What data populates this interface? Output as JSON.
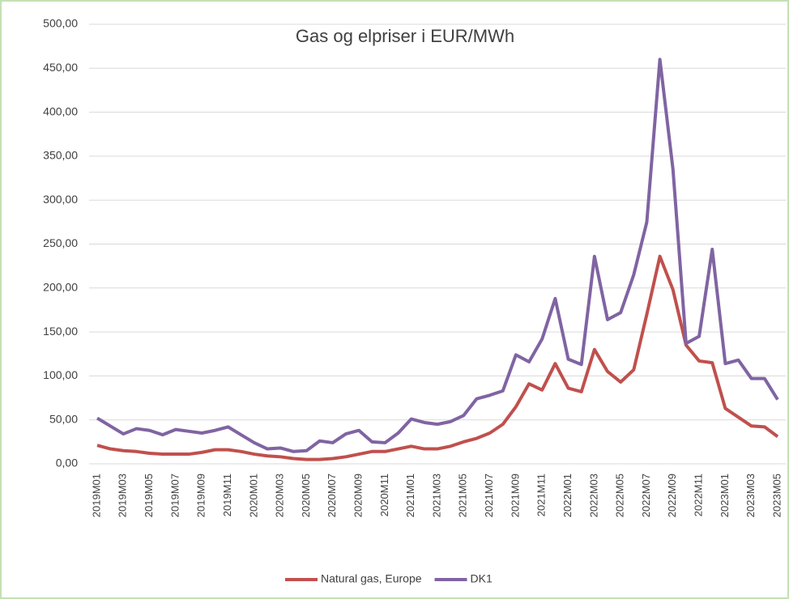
{
  "chart_data": {
    "type": "line",
    "title": "Gas og elpriser i EUR/MWh",
    "categories": [
      "2019M01",
      null,
      "2019M03",
      null,
      "2019M05",
      null,
      "2019M07",
      null,
      "2019M09",
      null,
      "2019M11",
      null,
      "2020M01",
      null,
      "2020M03",
      null,
      "2020M05",
      null,
      "2020M07",
      null,
      "2020M09",
      null,
      "2020M11",
      null,
      "2021M01",
      null,
      "2021M03",
      null,
      "2021M05",
      null,
      "2021M07",
      null,
      "2021M09",
      null,
      "2021M11",
      null,
      "2022M01",
      null,
      "2022M03",
      null,
      "2022M05",
      null,
      "2022M07",
      null,
      "2022M09",
      null,
      "2022M11",
      null,
      "2023M01",
      null,
      "2023M03",
      null,
      "2023M05"
    ],
    "series": [
      {
        "name": "Natural gas, Europe",
        "color": "#c0504d",
        "values": [
          21,
          17,
          15,
          14,
          12,
          11,
          11,
          11,
          13,
          16,
          16,
          14,
          11,
          9,
          8,
          6,
          5,
          5,
          6,
          8,
          11,
          14,
          14,
          17,
          20,
          17,
          17,
          20,
          25,
          29,
          35,
          45,
          65,
          91,
          84,
          114,
          86,
          82,
          130,
          105,
          93,
          107,
          170,
          236,
          198,
          135,
          117,
          115,
          63,
          53,
          43,
          42,
          31
        ]
      },
      {
        "name": "DK1",
        "color": "#8064a2",
        "values": [
          52,
          43,
          34,
          40,
          38,
          33,
          39,
          37,
          35,
          38,
          42,
          33,
          24,
          17,
          18,
          14,
          15,
          26,
          24,
          34,
          38,
          25,
          24,
          35,
          51,
          47,
          45,
          48,
          55,
          74,
          78,
          83,
          124,
          116,
          142,
          188,
          119,
          113,
          236,
          164,
          172,
          215,
          275,
          460,
          335,
          137,
          145,
          244,
          114,
          118,
          97,
          97,
          73
        ]
      }
    ],
    "ylim": [
      0,
      500
    ],
    "yticks": [
      {
        "value": 0,
        "label": "0,00"
      },
      {
        "value": 50,
        "label": "50,00"
      },
      {
        "value": 100,
        "label": "100,00"
      },
      {
        "value": 150,
        "label": "150,00"
      },
      {
        "value": 200,
        "label": "200,00"
      },
      {
        "value": 250,
        "label": "250,00"
      },
      {
        "value": 300,
        "label": "300,00"
      },
      {
        "value": 350,
        "label": "350,00"
      },
      {
        "value": 400,
        "label": "400,00"
      },
      {
        "value": 450,
        "label": "450,00"
      },
      {
        "value": 500,
        "label": "500,00"
      }
    ],
    "grid": true,
    "legend": "bottom"
  }
}
